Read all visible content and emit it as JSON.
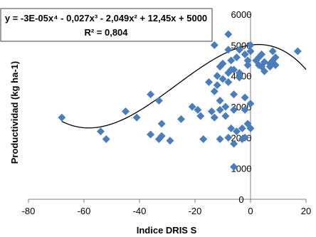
{
  "chart_data": {
    "type": "scatter",
    "title": "",
    "xlabel": "Indice DRIS  S",
    "ylabel": "Productividad  (kg ha-1)",
    "xlim": [
      -80,
      20
    ],
    "ylim": [
      0,
      6000
    ],
    "x_ticks": [
      "-80",
      "-60",
      "-40",
      "-20",
      "0",
      "20"
    ],
    "y_ticks": [
      "0",
      "1000",
      "2000",
      "3000",
      "4000",
      "5000",
      "6000"
    ],
    "grid": false,
    "legend": "none",
    "marker_color": "#4a7ebb",
    "trendline_color": "#000000",
    "annotation": {
      "equation": "y = -3E-05x⁴ - 0,027x³ - 2,049x² + 12,45x + 5000",
      "r2": "R² = 0,804"
    },
    "trendline": {
      "type": "polynomial",
      "coefficients": [
        -3e-05,
        -0.027,
        -2.049,
        12.45,
        5000
      ],
      "x_range": [
        -68,
        20
      ]
    },
    "points": [
      {
        "x": -68,
        "y": 2650
      },
      {
        "x": -54,
        "y": 2200
      },
      {
        "x": -52,
        "y": 1950
      },
      {
        "x": -45,
        "y": 2850
      },
      {
        "x": -41,
        "y": 2650
      },
      {
        "x": -36,
        "y": 3400
      },
      {
        "x": -36,
        "y": 2100
      },
      {
        "x": -33,
        "y": 3200
      },
      {
        "x": -33,
        "y": 1950
      },
      {
        "x": -32,
        "y": 2450
      },
      {
        "x": -32,
        "y": 2050
      },
      {
        "x": -29,
        "y": 1900
      },
      {
        "x": -25,
        "y": 2600
      },
      {
        "x": -21,
        "y": 3000
      },
      {
        "x": -19,
        "y": 2900
      },
      {
        "x": -18,
        "y": 2700
      },
      {
        "x": -17,
        "y": 1950
      },
      {
        "x": -15,
        "y": 3800
      },
      {
        "x": -14,
        "y": 2850
      },
      {
        "x": -13,
        "y": 5000
      },
      {
        "x": -13,
        "y": 3500
      },
      {
        "x": -13,
        "y": 2650
      },
      {
        "x": -12,
        "y": 4000
      },
      {
        "x": -12,
        "y": 3700
      },
      {
        "x": -11,
        "y": 4300
      },
      {
        "x": -11,
        "y": 3200
      },
      {
        "x": -11,
        "y": 2900
      },
      {
        "x": -11,
        "y": 1950
      },
      {
        "x": -10,
        "y": 4400
      },
      {
        "x": -10,
        "y": 3900
      },
      {
        "x": -9,
        "y": 3000
      },
      {
        "x": -9,
        "y": 2700
      },
      {
        "x": -8,
        "y": 5350
      },
      {
        "x": -8,
        "y": 4850
      },
      {
        "x": -8,
        "y": 4100
      },
      {
        "x": -8,
        "y": 3800
      },
      {
        "x": -8,
        "y": 2000
      },
      {
        "x": -7,
        "y": 4500
      },
      {
        "x": -7,
        "y": 4200
      },
      {
        "x": -7,
        "y": 2300
      },
      {
        "x": -6,
        "y": 4200
      },
      {
        "x": -6,
        "y": 3400
      },
      {
        "x": -6,
        "y": 2900
      },
      {
        "x": -6,
        "y": 1800
      },
      {
        "x": -6,
        "y": 1050
      },
      {
        "x": -5,
        "y": 4600
      },
      {
        "x": -5,
        "y": 2200
      },
      {
        "x": -4,
        "y": 4850
      },
      {
        "x": -4,
        "y": 4100
      },
      {
        "x": -4,
        "y": 3950
      },
      {
        "x": -3,
        "y": 2300
      },
      {
        "x": -3,
        "y": 1950
      },
      {
        "x": -2,
        "y": 4700
      },
      {
        "x": -2,
        "y": 3300
      },
      {
        "x": -2,
        "y": 2900
      },
      {
        "x": -2,
        "y": 2000
      },
      {
        "x": -1,
        "y": 4500
      },
      {
        "x": -1,
        "y": 4350
      },
      {
        "x": -1,
        "y": 2450
      },
      {
        "x": 0,
        "y": 5000
      },
      {
        "x": 0,
        "y": 4800
      },
      {
        "x": 0,
        "y": 3100
      },
      {
        "x": 0,
        "y": 2300
      },
      {
        "x": 2,
        "y": 4500
      },
      {
        "x": 3,
        "y": 4600
      },
      {
        "x": 3,
        "y": 4350
      },
      {
        "x": 4,
        "y": 4700
      },
      {
        "x": 4,
        "y": 4300
      },
      {
        "x": 5,
        "y": 4150
      },
      {
        "x": 5,
        "y": 4450
      },
      {
        "x": 7,
        "y": 4400
      },
      {
        "x": 7,
        "y": 4300
      },
      {
        "x": 8,
        "y": 4500
      },
      {
        "x": 8,
        "y": 4800
      },
      {
        "x": 9,
        "y": 4600
      },
      {
        "x": 9,
        "y": 4350
      },
      {
        "x": 17,
        "y": 4800
      }
    ]
  }
}
